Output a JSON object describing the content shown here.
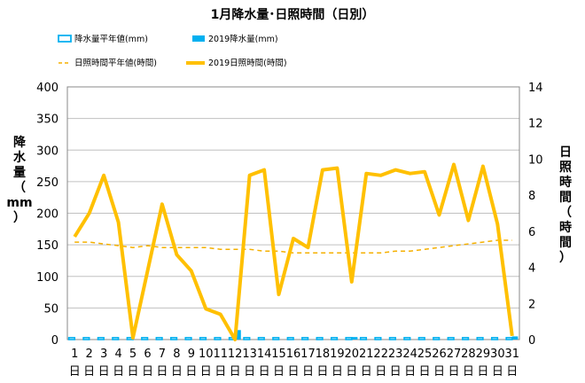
{
  "chart_data": {
    "type": "bar+line",
    "title": "1月降水量･日照時間（日別）",
    "legend": {
      "precip_normal": "降水量平年値(mm)",
      "precip_2019": "2019降水量(mm)",
      "sun_normal": "日照時間平年値(時間)",
      "sun_2019": "2019日照時間(時間)"
    },
    "y_left": {
      "label": [
        "降",
        "水",
        "量",
        "（",
        "mm",
        "）"
      ],
      "range": [
        0,
        400
      ],
      "ticks": [
        "0",
        "50",
        "100",
        "150",
        "200",
        "250",
        "300",
        "350",
        "400"
      ]
    },
    "y_right": {
      "label": [
        "日",
        "照",
        "時",
        "間",
        "（",
        "時",
        "間",
        "）"
      ],
      "range": [
        0,
        14
      ],
      "ticks": [
        "0",
        "2",
        "4",
        "6",
        "8",
        "10",
        "12",
        "14"
      ]
    },
    "categories": [
      "1",
      "2",
      "3",
      "4",
      "5",
      "6",
      "7",
      "8",
      "9",
      "10",
      "11",
      "12",
      "13",
      "14",
      "15",
      "16",
      "17",
      "18",
      "19",
      "20",
      "21",
      "22",
      "23",
      "24",
      "25",
      "26",
      "27",
      "28",
      "29",
      "30",
      "31"
    ],
    "category_suffix": "日",
    "series": [
      {
        "name": "降水量平年値(mm)",
        "axis": "left",
        "kind": "bar-outline",
        "color": "#00b0f0",
        "values": [
          3,
          3,
          3,
          3,
          3,
          3,
          3,
          3,
          3,
          3,
          3,
          3,
          3,
          3,
          3,
          3,
          3,
          3,
          3,
          3,
          3,
          3,
          3,
          3,
          3,
          3,
          3,
          3,
          3,
          3,
          3
        ]
      },
      {
        "name": "2019降水量(mm)",
        "axis": "left",
        "kind": "bar",
        "color": "#00b0f0",
        "values": [
          0,
          0,
          0,
          0,
          0,
          0,
          0,
          0,
          0,
          0,
          0,
          15,
          0,
          0,
          0,
          0,
          0,
          0,
          0,
          4,
          0,
          0,
          0,
          0,
          0,
          0,
          0,
          0,
          0,
          0,
          5
        ]
      },
      {
        "name": "日照時間平年値(時間)",
        "axis": "right",
        "kind": "dashed-line",
        "color": "#f5b000",
        "values": [
          5.4,
          5.4,
          5.3,
          5.2,
          5.1,
          5.2,
          5.1,
          5.1,
          5.1,
          5.1,
          5.0,
          5.0,
          5.0,
          4.9,
          4.9,
          4.8,
          4.8,
          4.8,
          4.8,
          4.8,
          4.8,
          4.8,
          4.9,
          4.9,
          5.0,
          5.1,
          5.2,
          5.3,
          5.4,
          5.5,
          5.5
        ]
      },
      {
        "name": "2019日照時間(時間)",
        "axis": "right",
        "kind": "line",
        "color": "#ffc000",
        "values": [
          5.7,
          7.0,
          9.1,
          6.5,
          0.1,
          3.8,
          7.5,
          4.7,
          3.8,
          1.7,
          1.4,
          0.0,
          9.1,
          9.4,
          2.5,
          5.6,
          5.1,
          9.4,
          9.5,
          3.2,
          9.2,
          9.1,
          9.4,
          9.2,
          9.3,
          6.9,
          9.7,
          6.6,
          9.6,
          6.4,
          0.2
        ]
      }
    ],
    "grid": "horizontal"
  }
}
